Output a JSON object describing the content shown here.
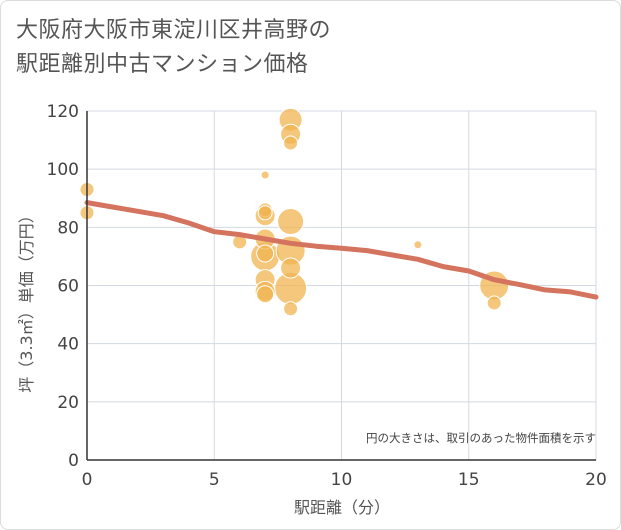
{
  "title": {
    "line1": "大阪府大阪市東淀川区井高野の",
    "line2": "駅距離別中古マンション価格"
  },
  "chart_data": {
    "type": "scatter",
    "title": "大阪府大阪市東淀川区井高野の駅距離別中古マンション価格",
    "xlabel": "駅距離（分）",
    "ylabel": "坪（3.3㎡）単価（万円）",
    "note": "円の大きさは、取引のあった物件面積を示す",
    "xlim": [
      0,
      20
    ],
    "ylim": [
      0,
      120
    ],
    "xticks": [
      0,
      5,
      10,
      15,
      20
    ],
    "yticks": [
      0,
      20,
      40,
      60,
      80,
      100,
      120
    ],
    "grid": true,
    "bubble_color": "#f0b450",
    "trend_color": "#d4735e",
    "points": [
      {
        "x": 0,
        "y": 93,
        "size": 1.5
      },
      {
        "x": 0,
        "y": 85,
        "size": 1.5
      },
      {
        "x": 6,
        "y": 75,
        "size": 1.5
      },
      {
        "x": 7,
        "y": 98,
        "size": 0.5
      },
      {
        "x": 7,
        "y": 86,
        "size": 1.5
      },
      {
        "x": 7,
        "y": 85,
        "size": 1.5
      },
      {
        "x": 7,
        "y": 84,
        "size": 2.5
      },
      {
        "x": 7,
        "y": 76,
        "size": 2.5
      },
      {
        "x": 7,
        "y": 71,
        "size": 2
      },
      {
        "x": 7,
        "y": 70,
        "size": 4
      },
      {
        "x": 7,
        "y": 62,
        "size": 2.5
      },
      {
        "x": 7,
        "y": 58,
        "size": 2.5
      },
      {
        "x": 7,
        "y": 57,
        "size": 2
      },
      {
        "x": 8,
        "y": 117,
        "size": 3
      },
      {
        "x": 8,
        "y": 112,
        "size": 2.5
      },
      {
        "x": 8,
        "y": 109,
        "size": 1.5
      },
      {
        "x": 8,
        "y": 82,
        "size": 3.5
      },
      {
        "x": 8,
        "y": 72,
        "size": 4
      },
      {
        "x": 8,
        "y": 66,
        "size": 2.5
      },
      {
        "x": 8,
        "y": 59,
        "size": 4.5
      },
      {
        "x": 8,
        "y": 52,
        "size": 1.5
      },
      {
        "x": 13,
        "y": 74,
        "size": 0.5
      },
      {
        "x": 16,
        "y": 60,
        "size": 4
      },
      {
        "x": 16,
        "y": 54,
        "size": 1.5
      }
    ],
    "trend": [
      {
        "x": 0,
        "y": 88.5
      },
      {
        "x": 1,
        "y": 87
      },
      {
        "x": 2,
        "y": 85.5
      },
      {
        "x": 3,
        "y": 84
      },
      {
        "x": 4,
        "y": 81.5
      },
      {
        "x": 5,
        "y": 78.5
      },
      {
        "x": 6,
        "y": 77.5
      },
      {
        "x": 7,
        "y": 76
      },
      {
        "x": 8,
        "y": 74.5
      },
      {
        "x": 9,
        "y": 73.5
      },
      {
        "x": 10,
        "y": 72.8
      },
      {
        "x": 11,
        "y": 72
      },
      {
        "x": 12,
        "y": 70.5
      },
      {
        "x": 13,
        "y": 69
      },
      {
        "x": 14,
        "y": 66.5
      },
      {
        "x": 15,
        "y": 65
      },
      {
        "x": 16,
        "y": 62
      },
      {
        "x": 17,
        "y": 60.3
      },
      {
        "x": 18,
        "y": 58.5
      },
      {
        "x": 19,
        "y": 57.8
      },
      {
        "x": 20,
        "y": 56
      }
    ]
  }
}
